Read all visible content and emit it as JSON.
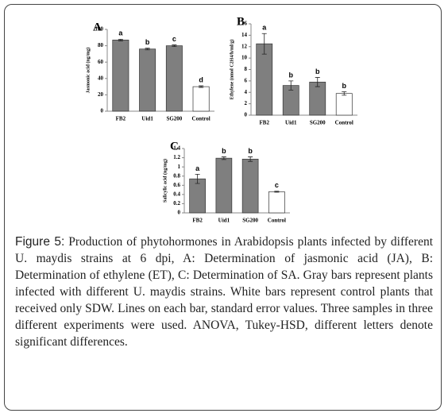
{
  "chart_data": [
    {
      "type": "bar",
      "panel": "A",
      "y_label": "Jasmonic acid (ng/mg)",
      "categories": [
        "FB2",
        "Uid1",
        "SG200",
        "Control"
      ],
      "values": [
        87,
        76,
        80,
        30
      ],
      "errors": [
        1,
        1,
        1,
        1
      ],
      "letters": [
        "a",
        "b",
        "c",
        "d"
      ],
      "colors": [
        "#7f7f7f",
        "#7f7f7f",
        "#7f7f7f",
        "#ffffff"
      ],
      "ylim": [
        0,
        100
      ],
      "yticks": [
        0,
        20,
        40,
        60,
        80,
        100
      ]
    },
    {
      "type": "bar",
      "panel": "B",
      "y_label": "Ethylene (nmol C2H4/h/ml/g)",
      "categories": [
        "FB2",
        "Uid1",
        "SG200",
        "Control"
      ],
      "values": [
        12.5,
        5.2,
        5.8,
        3.8
      ],
      "errors": [
        1.8,
        0.8,
        0.8,
        0.3
      ],
      "letters": [
        "a",
        "b",
        "b",
        "b"
      ],
      "colors": [
        "#7f7f7f",
        "#7f7f7f",
        "#7f7f7f",
        "#ffffff"
      ],
      "ylim": [
        0,
        16
      ],
      "yticks": [
        0,
        2,
        4,
        6,
        8,
        10,
        12,
        14,
        16
      ]
    },
    {
      "type": "bar",
      "panel": "C",
      "y_label": "Salicylic acid (ng/mg)",
      "categories": [
        "FB2",
        "Uid1",
        "SG200",
        "Control"
      ],
      "values": [
        0.74,
        1.19,
        1.17,
        0.46
      ],
      "errors": [
        0.1,
        0.03,
        0.05,
        0.01
      ],
      "letters": [
        "a",
        "b",
        "b",
        "c"
      ],
      "colors": [
        "#7f7f7f",
        "#7f7f7f",
        "#7f7f7f",
        "#ffffff"
      ],
      "ylim": [
        0,
        1.4
      ],
      "yticks": [
        0,
        0.2,
        0.4,
        0.6,
        0.8,
        1,
        1.2,
        1.4
      ]
    }
  ],
  "caption": {
    "label": "Figure 5:",
    "text": "Production of phytohormones in Arabidopsis plants infected by different U. maydis strains at 6 dpi, A: Determination of jasmonic acid (JA), B: Determination of ethylene (ET), C: Determination of SA. Gray bars represent plants infected with different U. maydis strains. White bars represent control plants that received only SDW. Lines on each bar, standard error values. Three samples in three different experiments were used. ANOVA, Tukey-HSD, different letters denote significant differences."
  }
}
